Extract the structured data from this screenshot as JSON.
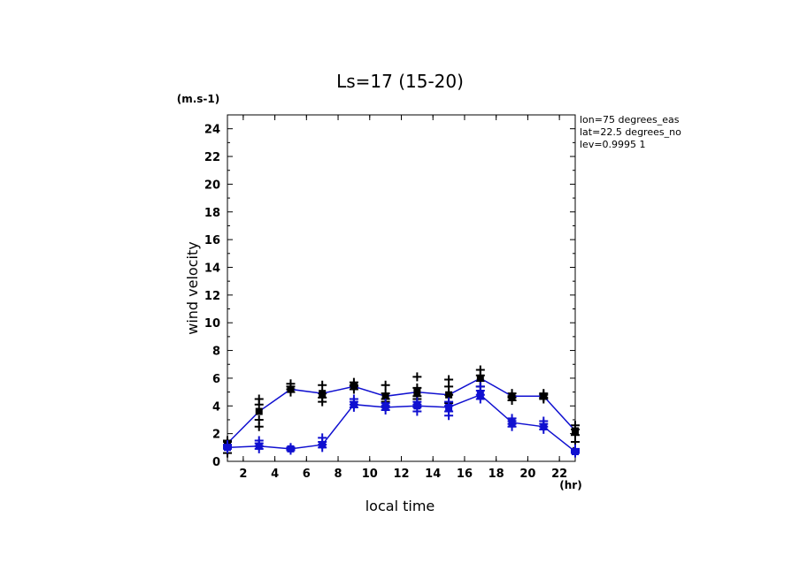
{
  "chart_data": {
    "type": "line",
    "title": "Ls=17 (15-20)",
    "xlabel": "local time",
    "ylabel": "wind velocity",
    "x_units": "(hr)",
    "y_units": "(m.s-1)",
    "xlim": [
      1,
      23
    ],
    "ylim": [
      0,
      25
    ],
    "x_ticks": [
      2,
      4,
      6,
      8,
      10,
      12,
      14,
      16,
      18,
      20,
      22
    ],
    "y_ticks": [
      0,
      2,
      4,
      6,
      8,
      10,
      12,
      14,
      16,
      18,
      20,
      22,
      24
    ],
    "grid": false,
    "annotations": [
      "lon=75 degrees_eas",
      "lat=22.5 degrees_no",
      "lev=0.9995 1"
    ],
    "x": [
      1,
      3,
      5,
      7,
      9,
      11,
      13,
      15,
      17,
      19,
      21,
      23
    ],
    "series": [
      {
        "color": "#1010d0",
        "values": [
          1.3,
          3.6,
          5.2,
          4.9,
          5.4,
          4.7,
          5.0,
          4.8,
          6.0,
          4.7,
          4.7,
          2.2
        ],
        "samples": [
          [
            0.6,
            1.0,
            1.4,
            1.5
          ],
          [
            2.5,
            3.0,
            4.1,
            4.5
          ],
          [
            5.0,
            5.2,
            5.4,
            5.6
          ],
          [
            4.3,
            4.6,
            4.9,
            5.5
          ],
          [
            5.2,
            5.4,
            5.5,
            5.7
          ],
          [
            4.3,
            4.5,
            4.9,
            5.5
          ],
          [
            4.5,
            4.7,
            5.3,
            6.1
          ],
          [
            4.2,
            4.8,
            5.4,
            5.9
          ],
          [
            5.4,
            5.8,
            6.2,
            6.6
          ],
          [
            4.4,
            4.6,
            4.7,
            4.9
          ],
          [
            4.5,
            4.6,
            4.8,
            4.9
          ],
          [
            1.4,
            1.9,
            2.3,
            2.6
          ]
        ]
      },
      {
        "color": "#1010d0",
        "values": [
          1.0,
          1.1,
          0.9,
          1.2,
          4.1,
          3.9,
          4.0,
          3.9,
          4.8,
          2.8,
          2.5,
          0.7
        ],
        "samples": [
          [
            0.9,
            1.0,
            1.1,
            1.2
          ],
          [
            0.9,
            1.1,
            1.3,
            1.5
          ],
          [
            0.8,
            0.9,
            1.0,
            1.0
          ],
          [
            1.0,
            1.2,
            1.4,
            1.7
          ],
          [
            3.9,
            4.1,
            4.3,
            4.5
          ],
          [
            3.7,
            3.9,
            4.0,
            4.2
          ],
          [
            3.6,
            3.9,
            4.1,
            4.3
          ],
          [
            3.3,
            3.6,
            4.0,
            4.3
          ],
          [
            4.5,
            4.8,
            5.1,
            5.4
          ],
          [
            2.5,
            2.7,
            2.9,
            3.1
          ],
          [
            2.3,
            2.5,
            2.7,
            2.9
          ],
          [
            0.6,
            0.7,
            0.8,
            0.9
          ]
        ]
      }
    ],
    "marker_color": "#000000",
    "highlight_marker_color": "#1010d0"
  }
}
